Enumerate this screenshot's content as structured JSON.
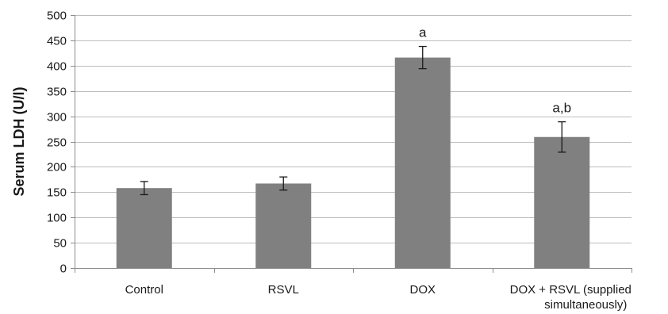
{
  "chart_data": {
    "type": "bar",
    "categories": [
      "Control",
      "RSVL",
      "DOX",
      "DOX + RSVL  (supplied simultaneously)"
    ],
    "category_lines": [
      [
        "Control"
      ],
      [
        "RSVL"
      ],
      [
        "DOX"
      ],
      [
        "DOX + RSVL  (supplied",
        "simultaneously)"
      ]
    ],
    "values": [
      158,
      167,
      416,
      259
    ],
    "errors": [
      13,
      13,
      22,
      30
    ],
    "annotations": [
      "",
      "",
      "a",
      "a,b"
    ],
    "title": "",
    "xlabel": "",
    "ylabel": "Serum LDH (U/l)",
    "ylim": [
      0,
      500
    ],
    "yticks": [
      0,
      50,
      100,
      150,
      200,
      250,
      300,
      350,
      400,
      450,
      500
    ],
    "grid": true,
    "legend": "none",
    "bar_color": "#808080",
    "grid_color": "#bdbdbd",
    "axis_color": "#8c8c8c",
    "error_color": "#1a1a1a"
  }
}
